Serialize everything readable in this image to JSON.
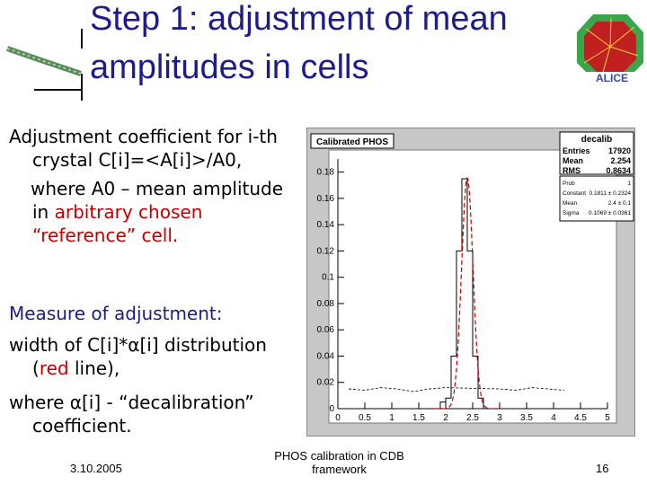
{
  "title": {
    "line1": "Step 1: adjustment of mean",
    "line2": "amplitudes in cells"
  },
  "left_text": {
    "p1_l1": "Adjustment coefficient for i-th",
    "p1_l2": "crystal C[i]=<A[i]>/A0,",
    "p1_l3": "where A0 – mean amplitude",
    "p1_l4a": "in ",
    "p1_l4b": "arbitrary chosen",
    "p1_l5": "“reference” cell.",
    "p2_l1": "Measure of adjustment:",
    "p3_l1a": "width of C[i]*",
    "p3_l1b": "α",
    "p3_l1c": "[i] distribution",
    "p3_l2a": "(",
    "p3_l2b": "red",
    "p3_l2c": " line),",
    "p4_l1a": "where ",
    "p4_l1b": "α",
    "p4_l1c": "[i] - “decalibration”",
    "p4_l2": "coefficient."
  },
  "logo_text": "ALICE",
  "footer": {
    "date": "3.10.2005",
    "center_l1": "PHOS calibration in CDB",
    "center_l2": "framework",
    "page": "16"
  },
  "colors": {
    "title": "#1c1c8c",
    "accent_red": "#c00000",
    "plot_bg": "#c7c7c7"
  },
  "chart_data": {
    "type": "histogram",
    "title": "Calibrated PHOS",
    "stats": {
      "name": "decalib",
      "rows": [
        {
          "label": "Entries",
          "value": "17920"
        },
        {
          "label": "Mean",
          "value": "2.254"
        },
        {
          "label": "RMS",
          "value": "0.8634"
        }
      ]
    },
    "fit": {
      "rows": [
        {
          "label": "Prob",
          "value": "1"
        },
        {
          "label": "Constant",
          "value": "0.1811 ± 0.2324"
        },
        {
          "label": "Mean",
          "value": "2.4 ± 0.1"
        },
        {
          "label": "Sigma",
          "value": "0.1069 ± 0.0361"
        }
      ]
    },
    "xlim": [
      0,
      5
    ],
    "ylim": [
      0,
      0.19
    ],
    "x_ticks": [
      "0",
      "0.5",
      "1",
      "1.5",
      "2",
      "2.5",
      "3",
      "3.5",
      "4",
      "4.5",
      "5"
    ],
    "y_ticks": [
      "0",
      "0.02",
      "0.04",
      "0.06",
      "0.08",
      "0.1",
      "0.12",
      "0.14",
      "0.16",
      "0.18"
    ],
    "fit_curve": {
      "constant": 0.1811,
      "mean": 2.4,
      "sigma": 0.1069
    },
    "histogram": {
      "x": [
        1.65,
        1.75,
        1.85,
        1.95,
        2.05,
        2.15,
        2.25,
        2.35,
        2.45,
        2.55,
        2.65,
        2.75,
        2.85,
        2.95,
        3.05,
        3.15
      ],
      "y": [
        0.0,
        0.0,
        0.0,
        0.005,
        0.008,
        0.04,
        0.12,
        0.175,
        0.12,
        0.04,
        0.008,
        0.0,
        0.0,
        0.0,
        0.0,
        0.0
      ]
    },
    "baseline_noise": {
      "x": [
        0.2,
        0.5,
        0.8,
        1.1,
        1.4,
        1.7,
        2.0,
        3.0,
        3.3,
        3.6,
        3.9,
        4.2
      ],
      "y": [
        0.015,
        0.014,
        0.016,
        0.015,
        0.013,
        0.015,
        0.016,
        0.015,
        0.014,
        0.016,
        0.015,
        0.014
      ]
    }
  }
}
